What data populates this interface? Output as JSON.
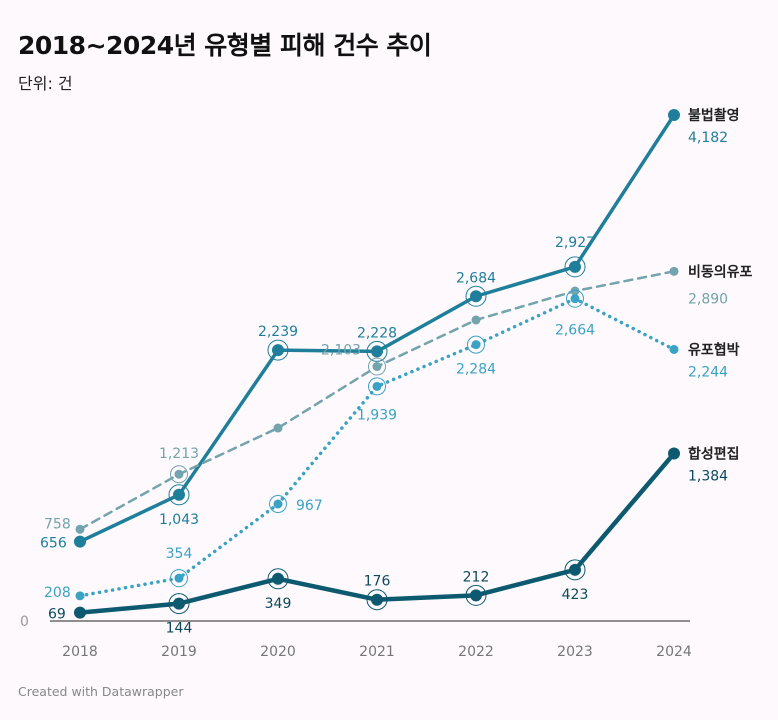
{
  "title": "2018~2024년 유형별 피해 건수 추이",
  "unit_label": "단위: 건",
  "credit": "Created with Datawrapper",
  "chart_data": {
    "type": "line",
    "title": "2018~2024년 유형별 피해 건수 추이",
    "subtitle": "단위: 건",
    "categories": [
      "2018",
      "2019",
      "2020",
      "2021",
      "2022",
      "2023",
      "2024"
    ],
    "ylim": [
      0,
      4182
    ],
    "y_ticks": [
      "0"
    ],
    "grid": false,
    "legend": "direct labels at line ends (right)",
    "series": [
      {
        "name": "불법촬영",
        "values": [
          656,
          1043,
          2239,
          2228,
          2684,
          2927,
          4182
        ],
        "color": "#1f7f9a",
        "style": "solid",
        "labels": [
          "656",
          "1,043",
          "2,239",
          "2,228",
          "2,684",
          "2,927",
          "4,182"
        ]
      },
      {
        "name": "비동의유포",
        "values": [
          758,
          1213,
          1595,
          2103,
          2488,
          2727,
          2890
        ],
        "color": "#73a3ad",
        "style": "dashed",
        "labels": [
          "758",
          "1,213",
          null,
          "2,103",
          null,
          null,
          "2,890"
        ]
      },
      {
        "name": "유포협박",
        "values": [
          208,
          354,
          967,
          1939,
          2284,
          2664,
          2244
        ],
        "color": "#3aa3c4",
        "style": "dotted",
        "labels": [
          "208",
          "354",
          "967",
          "1,939",
          "2,284",
          "2,664",
          "2,244"
        ]
      },
      {
        "name": "합성편집",
        "values": [
          69,
          144,
          349,
          176,
          212,
          423,
          1384
        ],
        "color": "#0d5a70",
        "style": "solid-thick",
        "labels": [
          "69",
          "144",
          "349",
          "176",
          "212",
          "423",
          "1,384"
        ]
      }
    ]
  }
}
